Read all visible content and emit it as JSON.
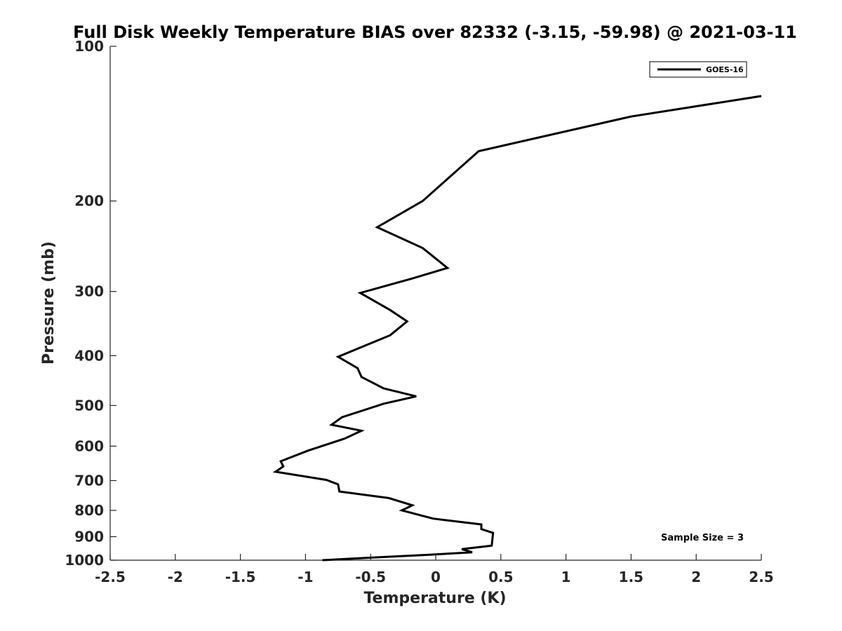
{
  "chart_data": {
    "type": "line",
    "title": "Full Disk Weekly Temperature BIAS over 82332 (-3.15, -59.98) @ 2021-03-11",
    "xlabel": "Temperature (K)",
    "ylabel": "Pressure (mb)",
    "xlim": [
      -2.5,
      2.5
    ],
    "ylim": [
      1000,
      100
    ],
    "y_scale": "log",
    "y_reversed": true,
    "x_ticks": [
      -2.5,
      -2,
      -1.5,
      -1,
      -0.5,
      0,
      0.5,
      1,
      1.5,
      2,
      2.5
    ],
    "x_tick_labels": [
      "-2.5",
      "-2",
      "-1.5",
      "-1",
      "-0.5",
      "0",
      "0.5",
      "1",
      "1.5",
      "2",
      "2.5"
    ],
    "y_ticks": [
      100,
      200,
      300,
      400,
      500,
      600,
      700,
      800,
      900,
      1000
    ],
    "y_tick_labels": [
      "100",
      "200",
      "300",
      "400",
      "500",
      "600",
      "700",
      "800",
      "900",
      "1000"
    ],
    "grid": false,
    "legend_position": "top-right",
    "annotation": "Sample Size = 3",
    "series": [
      {
        "name": "GOES-16",
        "color": "#000000",
        "points": [
          [
            2.5,
            125
          ],
          [
            1.5,
            137
          ],
          [
            0.33,
            160
          ],
          [
            -0.1,
            200
          ],
          [
            -0.45,
            225
          ],
          [
            -0.1,
            247
          ],
          [
            0.09,
            270
          ],
          [
            -0.18,
            283
          ],
          [
            -0.58,
            302
          ],
          [
            -0.35,
            326
          ],
          [
            -0.22,
            343
          ],
          [
            -0.35,
            365
          ],
          [
            -0.75,
            402
          ],
          [
            -0.6,
            423
          ],
          [
            -0.57,
            440
          ],
          [
            -0.4,
            463
          ],
          [
            -0.15,
            480
          ],
          [
            -0.4,
            496
          ],
          [
            -0.72,
            527
          ],
          [
            -0.8,
            545
          ],
          [
            -0.57,
            560
          ],
          [
            -0.7,
            580
          ],
          [
            -0.98,
            612
          ],
          [
            -1.19,
            642
          ],
          [
            -1.17,
            657
          ],
          [
            -1.23,
            673
          ],
          [
            -0.84,
            698
          ],
          [
            -0.75,
            712
          ],
          [
            -0.74,
            735
          ],
          [
            -0.36,
            757
          ],
          [
            -0.18,
            782
          ],
          [
            -0.26,
            800
          ],
          [
            -0.02,
            830
          ],
          [
            0.35,
            852
          ],
          [
            0.35,
            870
          ],
          [
            0.44,
            885
          ],
          [
            0.43,
            937
          ],
          [
            0.2,
            952
          ],
          [
            0.28,
            965
          ],
          [
            -0.05,
            976
          ],
          [
            -0.54,
            990
          ],
          [
            -0.87,
            1000
          ]
        ]
      }
    ]
  }
}
